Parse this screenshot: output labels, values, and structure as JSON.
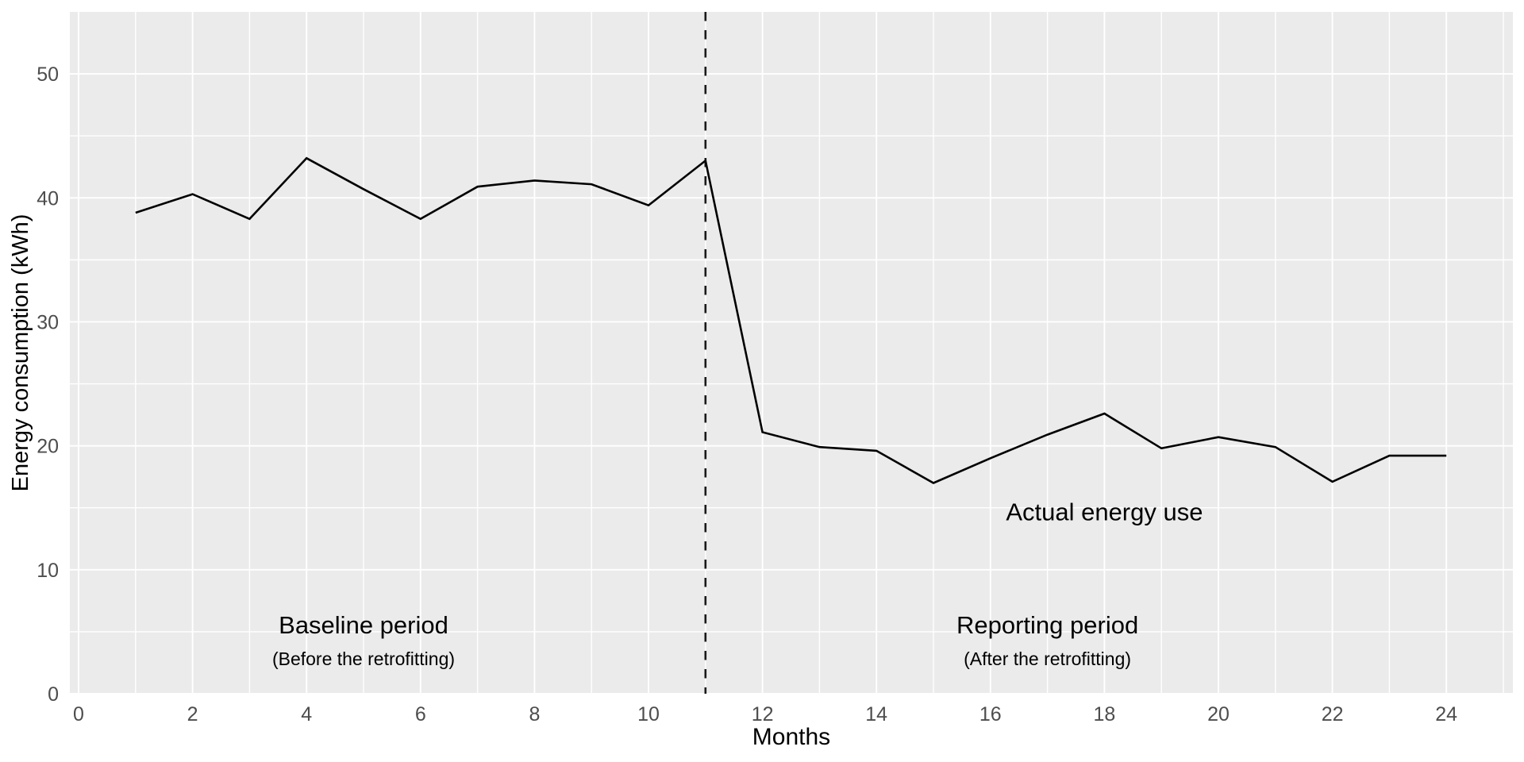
{
  "figure": {
    "background": "#ffffff"
  },
  "chart_data": {
    "type": "line",
    "title": "",
    "xlabel": "Months",
    "ylabel": "Energy consumption (kWh)",
    "x": [
      1,
      2,
      3,
      4,
      5,
      6,
      7,
      8,
      9,
      10,
      11,
      12,
      13,
      14,
      15,
      16,
      17,
      18,
      19,
      20,
      21,
      22,
      23,
      24
    ],
    "series": [
      {
        "name": "Actual energy use",
        "color": "#000000",
        "values": [
          38.8,
          40.3,
          38.3,
          43.2,
          40.7,
          38.3,
          40.9,
          41.4,
          41.1,
          39.4,
          43.0,
          21.1,
          19.9,
          19.6,
          17.0,
          19.0,
          20.9,
          22.6,
          19.8,
          20.7,
          19.9,
          17.1,
          19.2,
          19.2
        ]
      }
    ],
    "xlim": [
      -0.15,
      25.17
    ],
    "ylim": [
      0,
      55
    ],
    "x_ticks": [
      0,
      2,
      4,
      6,
      8,
      10,
      12,
      14,
      16,
      18,
      20,
      22,
      24
    ],
    "y_ticks": [
      0,
      10,
      20,
      30,
      40,
      50
    ],
    "x_minor_ticks": [
      1,
      3,
      5,
      7,
      9,
      11,
      13,
      15,
      17,
      19,
      21,
      23,
      25
    ],
    "y_minor_ticks": [
      5,
      15,
      25,
      35,
      45
    ],
    "grid": "major-and-minor, white on gray panel",
    "legend": "none",
    "panel_bg": "#EBEBEB",
    "grid_color": "#FFFFFF",
    "tick_label_color": "#4D4D4D",
    "vline": {
      "x": 11,
      "style": "dashed",
      "color": "#1A1A1A"
    },
    "annotations": [
      {
        "text": "Actual energy use",
        "x": 18.0,
        "y": 14.7,
        "size": "large"
      },
      {
        "text": "Baseline period",
        "x": 5.0,
        "y": 5.57,
        "size": "large"
      },
      {
        "text": "(Before the retrofitting)",
        "x": 5.0,
        "y": 2.82,
        "size": "small"
      },
      {
        "text": "Reporting period",
        "x": 17.0,
        "y": 5.57,
        "size": "large"
      },
      {
        "text": "(After the retrofitting)",
        "x": 17.0,
        "y": 2.82,
        "size": "small"
      }
    ]
  }
}
